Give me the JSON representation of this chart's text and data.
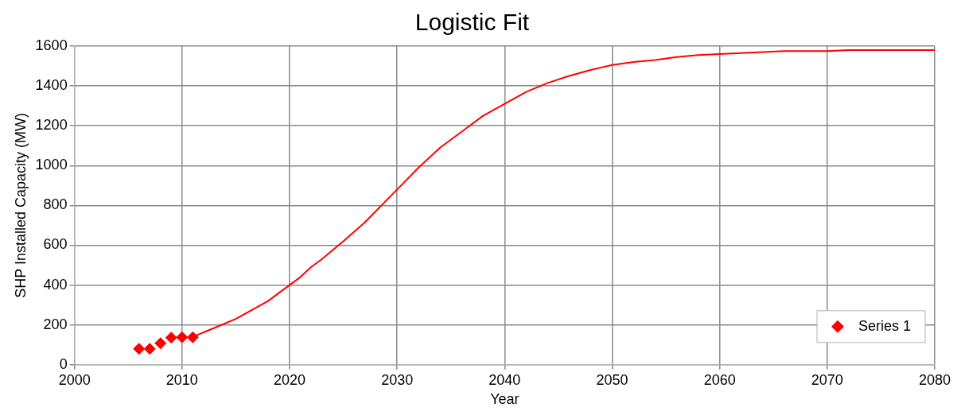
{
  "chart_data": {
    "type": "scatter",
    "title": "Logistic Fit",
    "xlabel": "Year",
    "ylabel": "SHP Installed Capacity (MW)",
    "xlim": [
      2000,
      2080
    ],
    "xticks": [
      2000,
      2010,
      2020,
      2030,
      2040,
      2050,
      2060,
      2070,
      2080
    ],
    "ylim": [
      0,
      1600
    ],
    "yticks": [
      0,
      200,
      400,
      600,
      800,
      1000,
      1200,
      1400,
      1600
    ],
    "grid": true,
    "legend": "bottom right",
    "marker": "diamond",
    "series": [
      {
        "name": "Series 1",
        "color": "#ff0000",
        "x": [
          2006,
          2007,
          2008,
          2009,
          2010,
          2011
        ],
        "values": [
          80,
          80,
          108,
          136,
          138,
          138
        ]
      },
      {
        "type": "line",
        "color": "#ff0000",
        "marker": "none",
        "line_style": "solid",
        "x": [
          2011,
          2013,
          2015,
          2018,
          2020,
          2021,
          2022,
          2023,
          2025,
          2027,
          2030,
          2032,
          2034,
          2036,
          2038,
          2040,
          2042,
          2044,
          2046,
          2048,
          2050,
          2052,
          2054,
          2056,
          2058,
          2060,
          2062,
          2064,
          2066,
          2070,
          2072,
          2080
        ],
        "values": [
          140,
          185,
          230,
          320,
          400,
          440,
          490,
          530,
          620,
          715,
          880,
          990,
          1090,
          1170,
          1250,
          1310,
          1370,
          1415,
          1450,
          1480,
          1505,
          1520,
          1530,
          1545,
          1555,
          1560,
          1565,
          1570,
          1575,
          1575,
          1580,
          1580
        ]
      }
    ]
  }
}
